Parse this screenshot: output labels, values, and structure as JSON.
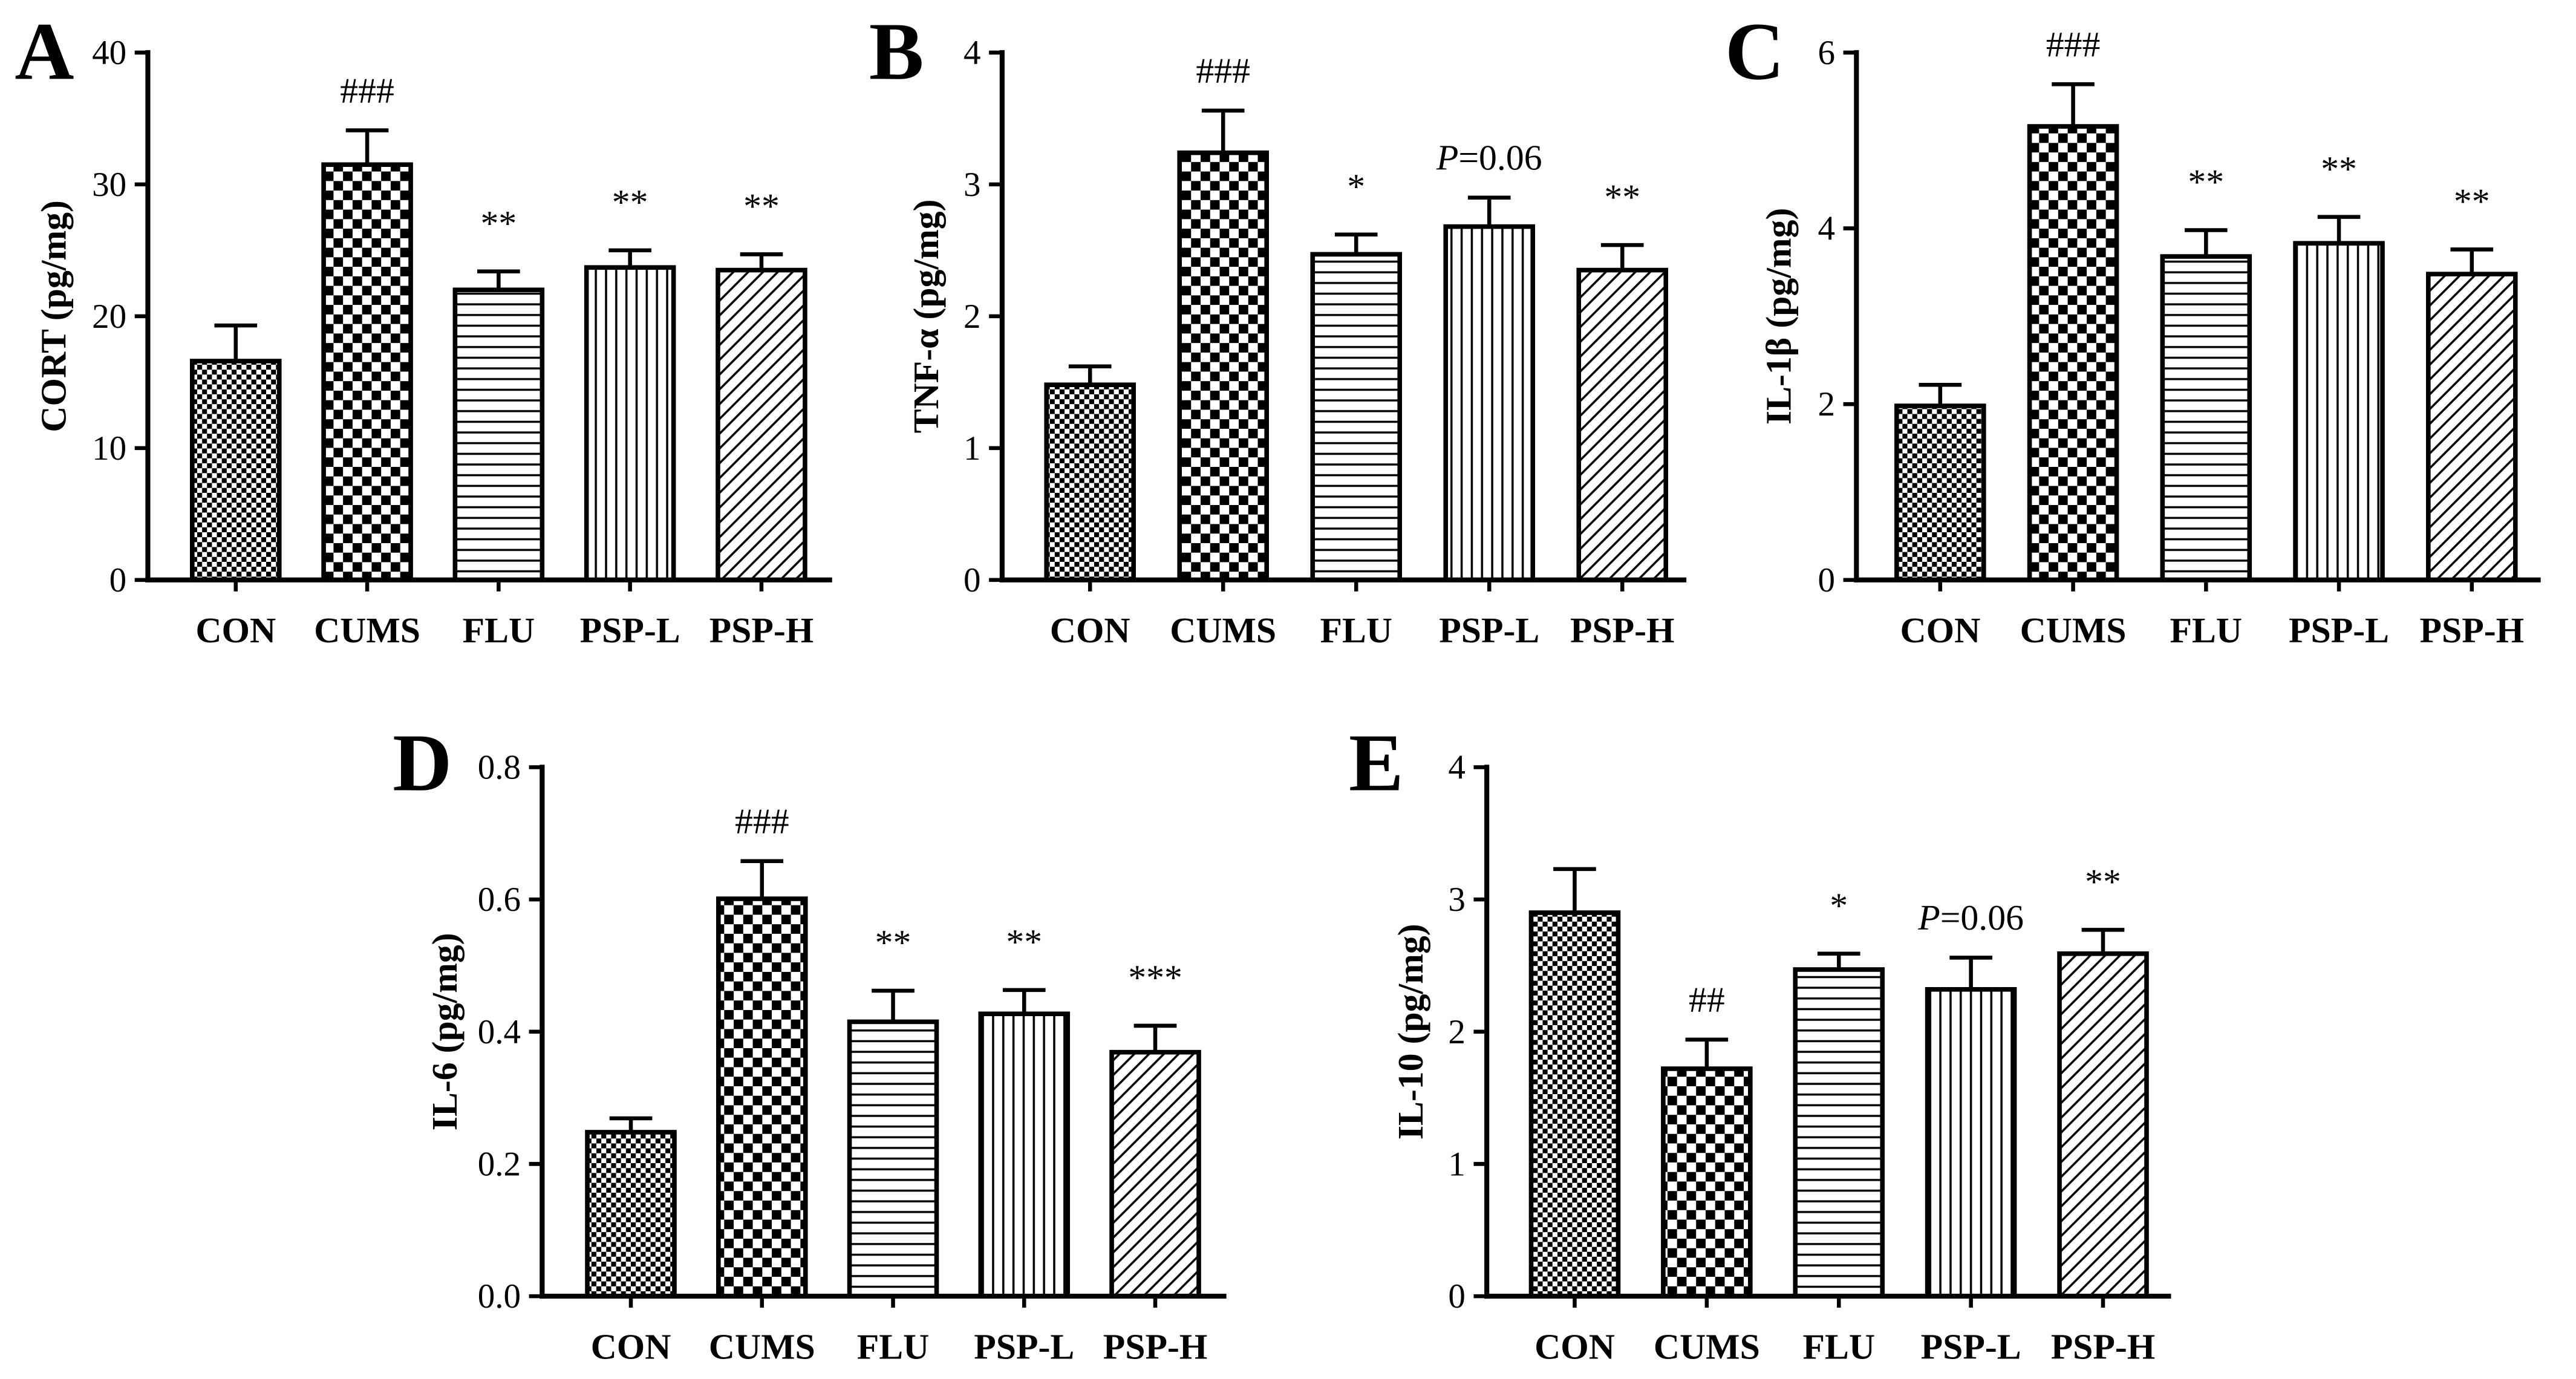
{
  "colors": {
    "ink": "#000000",
    "background": "#ffffff"
  },
  "chart_data": [
    {
      "panel": "A",
      "type": "bar",
      "categories": [
        "CON",
        "CUMS",
        "FLU",
        "PSP-L",
        "PSP-H"
      ],
      "values": [
        16.6,
        31.5,
        22.0,
        23.7,
        23.5
      ],
      "errors": [
        2.7,
        2.6,
        1.4,
        1.3,
        1.2
      ],
      "annotations": [
        null,
        "###",
        "**",
        "**",
        "**"
      ],
      "ylabel": "CORT (pg/mg)",
      "ylim": [
        0,
        40
      ],
      "yticks": [
        0,
        10,
        20,
        30,
        40
      ],
      "ytick_labels": [
        "0",
        "10",
        "20",
        "30",
        "40"
      ]
    },
    {
      "panel": "B",
      "type": "bar",
      "categories": [
        "CON",
        "CUMS",
        "FLU",
        "PSP-L",
        "PSP-H"
      ],
      "values": [
        1.48,
        3.24,
        2.47,
        2.68,
        2.35
      ],
      "errors": [
        0.14,
        0.32,
        0.15,
        0.22,
        0.19
      ],
      "annotations": [
        null,
        "###",
        "*",
        {
          "italic": "P",
          "text": "=0.06"
        },
        "**"
      ],
      "ylabel": "TNF-α (pg/mg)",
      "ylim": [
        0,
        4
      ],
      "yticks": [
        0,
        1,
        2,
        3,
        4
      ],
      "ytick_labels": [
        "0",
        "1",
        "2",
        "3",
        "4"
      ]
    },
    {
      "panel": "C",
      "type": "bar",
      "categories": [
        "CON",
        "CUMS",
        "FLU",
        "PSP-L",
        "PSP-H"
      ],
      "values": [
        1.98,
        5.16,
        3.68,
        3.83,
        3.48
      ],
      "errors": [
        0.24,
        0.48,
        0.3,
        0.3,
        0.28
      ],
      "annotations": [
        null,
        "###",
        "**",
        "**",
        "**"
      ],
      "ylabel": "IL-1β (pg/mg)",
      "ylim": [
        0,
        6
      ],
      "yticks": [
        0,
        2,
        4,
        6
      ],
      "ytick_labels": [
        "0",
        "2",
        "4",
        "6"
      ]
    },
    {
      "panel": "D",
      "type": "bar",
      "categories": [
        "CON",
        "CUMS",
        "FLU",
        "PSP-L",
        "PSP-H"
      ],
      "values": [
        0.248,
        0.601,
        0.415,
        0.427,
        0.369
      ],
      "errors": [
        0.021,
        0.057,
        0.047,
        0.036,
        0.04
      ],
      "annotations": [
        null,
        "###",
        "**",
        "**",
        "***"
      ],
      "ylabel": "IL-6 (pg/mg)",
      "ylim": [
        0,
        0.8
      ],
      "yticks": [
        0,
        0.2,
        0.4,
        0.6,
        0.8
      ],
      "ytick_labels": [
        "0.0",
        "0.2",
        "0.4",
        "0.6",
        "0.8"
      ]
    },
    {
      "panel": "E",
      "type": "bar",
      "categories": [
        "CON",
        "CUMS",
        "FLU",
        "PSP-L",
        "PSP-H"
      ],
      "values": [
        2.9,
        1.72,
        2.47,
        2.32,
        2.59
      ],
      "errors": [
        0.33,
        0.22,
        0.12,
        0.24,
        0.18
      ],
      "annotations": [
        null,
        "##",
        "*",
        {
          "italic": "P",
          "text": "=0.06"
        },
        "**"
      ],
      "ylabel": "IL-10 (pg/mg)",
      "ylim": [
        0,
        4
      ],
      "yticks": [
        0,
        1,
        2,
        3,
        4
      ],
      "ytick_labels": [
        "0",
        "1",
        "2",
        "3",
        "4"
      ]
    }
  ]
}
